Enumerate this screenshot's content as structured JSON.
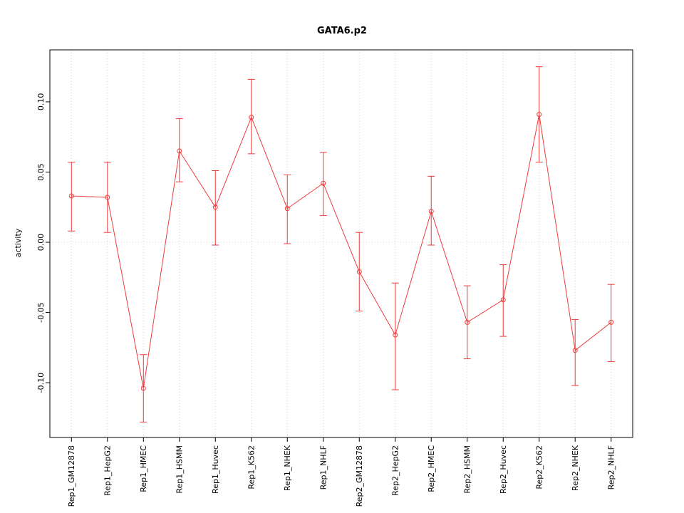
{
  "chart_data": {
    "type": "line",
    "title": "GATA6.p2",
    "xlabel": "",
    "ylabel": "activity",
    "legend": "none",
    "grid": "dotted vertical gridline at each category; dotted horizontal gridline at y=0",
    "color": "#ee3b3b",
    "grid_color": "#cfcfcf",
    "ylim": [
      -0.139,
      0.137
    ],
    "yticks": [
      -0.1,
      -0.05,
      0,
      0.05,
      0.1
    ],
    "ytick_labels": [
      "-0.10",
      "-0.05",
      "0.00",
      "0.05",
      "0.10"
    ],
    "categories": [
      "Rep1_GM12878",
      "Rep1_HepG2",
      "Rep1_HMEC",
      "Rep1_HSMM",
      "Rep1_Huvec",
      "Rep1_K562",
      "Rep1_NHEK",
      "Rep1_NHLF",
      "Rep2_GM12878",
      "Rep2_HepG2",
      "Rep2_HMEC",
      "Rep2_HSMM",
      "Rep2_Huvec",
      "Rep2_K562",
      "Rep2_NHEK",
      "Rep2_NHLF"
    ],
    "values": [
      0.033,
      0.032,
      -0.104,
      0.065,
      0.025,
      0.089,
      0.024,
      0.042,
      -0.021,
      -0.066,
      0.022,
      -0.057,
      -0.041,
      0.091,
      -0.077,
      -0.057
    ],
    "err_low": [
      0.008,
      0.007,
      -0.128,
      0.043,
      -0.002,
      0.063,
      -0.001,
      0.019,
      -0.049,
      -0.105,
      -0.002,
      -0.083,
      -0.067,
      0.057,
      -0.102,
      -0.085
    ],
    "err_high": [
      0.057,
      0.057,
      -0.08,
      0.088,
      0.051,
      0.116,
      0.048,
      0.064,
      0.007,
      -0.029,
      0.047,
      -0.031,
      -0.016,
      0.125,
      -0.055,
      -0.03
    ]
  }
}
